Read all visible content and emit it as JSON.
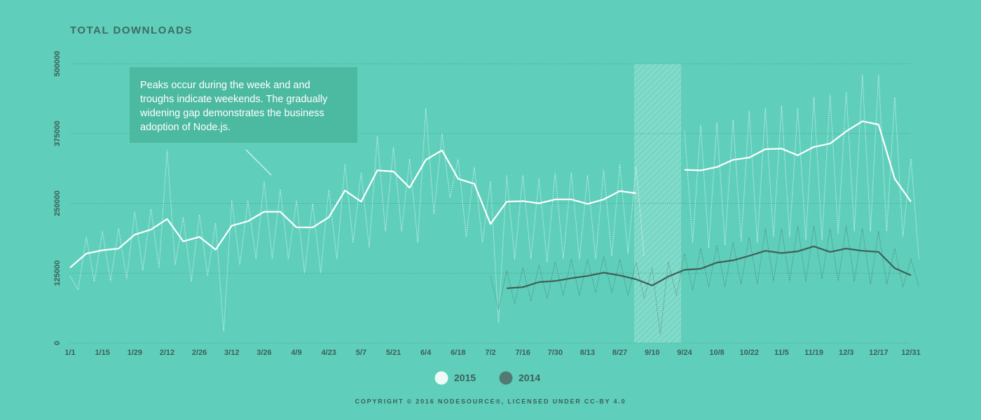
{
  "chart_data": {
    "type": "line",
    "title": "TOTAL DOWNLOADS",
    "annotation": [
      "Peaks occur during the week and and",
      "troughs indicate weekends. The gradually",
      "widening gap demonstrates the business",
      "adoption of Node.js."
    ],
    "footer": "COPYRIGHT © 2016 NODESOURCE®, LICENSED UNDER CC-BY 4.0",
    "categories": [
      "1/1",
      null,
      "1/15",
      null,
      "1/29",
      null,
      "2/12",
      null,
      "2/26",
      null,
      "3/12",
      null,
      "3/26",
      null,
      "4/9",
      null,
      "4/23",
      null,
      "5/7",
      null,
      "5/21",
      null,
      "6/4",
      null,
      "6/18",
      null,
      "7/2",
      null,
      "7/16",
      null,
      "7/30",
      null,
      "8/13",
      null,
      "8/27",
      null,
      "9/10",
      null,
      "9/24",
      null,
      "10/8",
      null,
      "10/22",
      null,
      "11/5",
      null,
      "11/19",
      null,
      "12/3",
      null,
      "12/17",
      null,
      "12/31"
    ],
    "ylim": [
      0,
      500000
    ],
    "yticks": [
      0,
      125000,
      250000,
      375000,
      500000
    ],
    "grid": true,
    "legend": "bottom",
    "series": [
      {
        "name": "2015",
        "color": "#ffffff",
        "values": [
          135000,
          160000,
          166000,
          169000,
          194000,
          203000,
          222000,
          182000,
          190000,
          167000,
          210000,
          218000,
          235000,
          235000,
          207000,
          207000,
          225000,
          273000,
          253000,
          309000,
          307000,
          278000,
          328000,
          345000,
          294000,
          285000,
          213000,
          253000,
          254000,
          250000,
          257000,
          257000,
          249000,
          257000,
          272000,
          268000,
          null,
          null,
          310000,
          309000,
          315000,
          328000,
          332000,
          347000,
          348000,
          336000,
          351000,
          357000,
          379000,
          397000,
          391000,
          294000,
          253000
        ],
        "daily_high": [
          120000,
          190000,
          200000,
          205000,
          235000,
          240000,
          345000,
          225000,
          230000,
          215000,
          255000,
          255000,
          290000,
          275000,
          255000,
          250000,
          275000,
          320000,
          305000,
          370000,
          350000,
          330000,
          420000,
          375000,
          330000,
          315000,
          290000,
          300000,
          300000,
          295000,
          305000,
          305000,
          300000,
          310000,
          320000,
          315000,
          null,
          null,
          380000,
          390000,
          395000,
          400000,
          415000,
          420000,
          425000,
          420000,
          440000,
          445000,
          450000,
          480000,
          480000,
          440000,
          330000
        ],
        "daily_low": [
          95000,
          110000,
          110000,
          115000,
          130000,
          135000,
          140000,
          110000,
          120000,
          20000,
          140000,
          150000,
          150000,
          150000,
          125000,
          125000,
          150000,
          180000,
          170000,
          200000,
          200000,
          180000,
          230000,
          260000,
          190000,
          180000,
          35000,
          150000,
          150000,
          145000,
          150000,
          150000,
          150000,
          155000,
          160000,
          155000,
          null,
          null,
          180000,
          170000,
          175000,
          180000,
          180000,
          190000,
          190000,
          185000,
          185000,
          195000,
          200000,
          200000,
          200000,
          190000,
          150000
        ]
      },
      {
        "name": "2014",
        "color": "#3f5f58",
        "values": [
          null,
          null,
          null,
          null,
          null,
          null,
          null,
          null,
          null,
          null,
          null,
          null,
          null,
          null,
          null,
          null,
          null,
          null,
          null,
          null,
          null,
          null,
          null,
          null,
          null,
          null,
          null,
          98000,
          100000,
          109000,
          111000,
          116000,
          120000,
          126000,
          121000,
          114000,
          103000,
          119000,
          131000,
          133000,
          144000,
          148000,
          156000,
          165000,
          161000,
          164000,
          173000,
          163000,
          169000,
          165000,
          163000,
          134000,
          121000
        ],
        "daily_high": [
          null,
          null,
          null,
          null,
          null,
          null,
          null,
          null,
          null,
          null,
          null,
          null,
          null,
          null,
          null,
          null,
          null,
          null,
          null,
          null,
          null,
          null,
          null,
          null,
          null,
          null,
          120000,
          130000,
          135000,
          140000,
          145000,
          150000,
          150000,
          155000,
          150000,
          145000,
          135000,
          145000,
          160000,
          170000,
          175000,
          180000,
          190000,
          205000,
          205000,
          210000,
          210000,
          205000,
          210000,
          205000,
          200000,
          170000,
          150000
        ],
        "daily_low": [
          null,
          null,
          null,
          null,
          null,
          null,
          null,
          null,
          null,
          null,
          null,
          null,
          null,
          null,
          null,
          null,
          null,
          null,
          null,
          null,
          null,
          null,
          null,
          null,
          null,
          null,
          60000,
          70000,
          75000,
          80000,
          85000,
          85000,
          90000,
          90000,
          85000,
          80000,
          15000,
          85000,
          95000,
          100000,
          100000,
          105000,
          105000,
          110000,
          110000,
          110000,
          115000,
          110000,
          110000,
          105000,
          105000,
          100000,
          100000
        ]
      }
    ]
  }
}
